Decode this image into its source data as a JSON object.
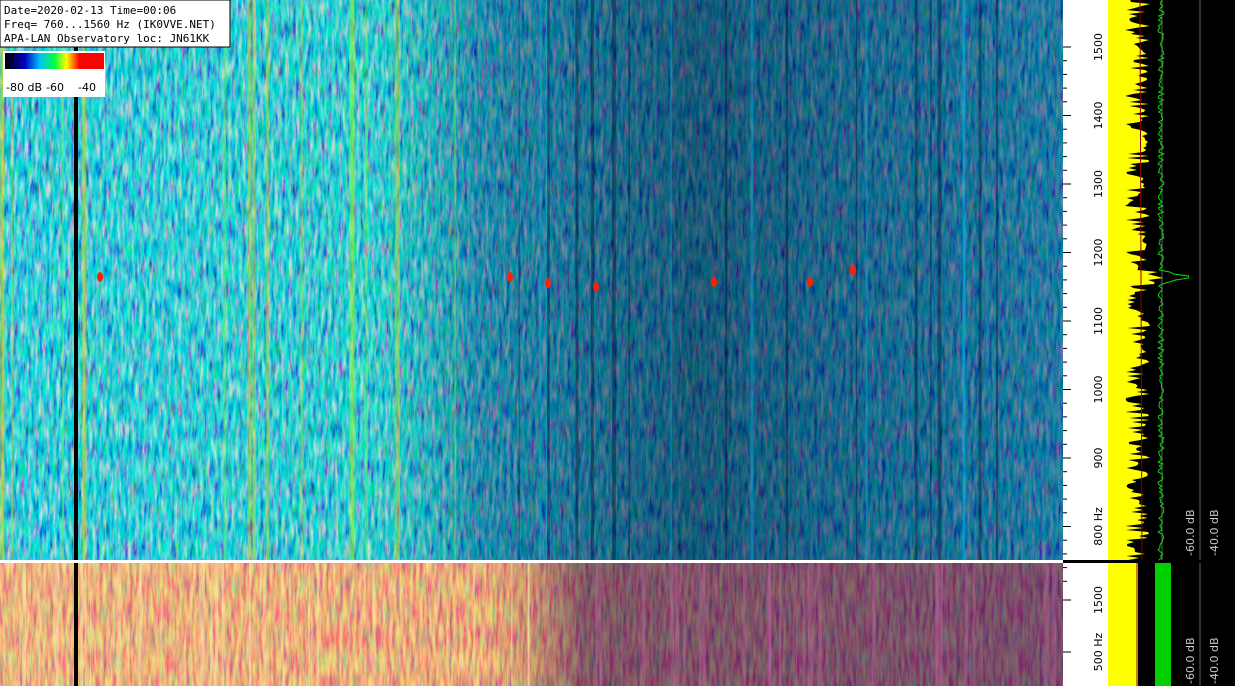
{
  "header": {
    "lines": [
      "Date=2020-02-13 Time=00:06",
      "Freq= 760...1560 Hz (IK0VVE.NET)",
      "APA-LAN Observatory loc: JN61KK"
    ]
  },
  "colorbar": {
    "labels": [
      "-80 dB",
      "-60",
      "-40"
    ]
  },
  "upper_axis": {
    "ticks": [
      "1500",
      "1400",
      "1300",
      "1200",
      "1100",
      "1000",
      "900",
      "800 Hz"
    ]
  },
  "upper_spectrum": {
    "labels": [
      "-60.0 dB",
      "-40.0 dB"
    ]
  },
  "lower_axis": {
    "ticks": [
      "1500",
      "500 Hz"
    ]
  },
  "lower_spectrum": {
    "labels": [
      "-60.0 dB",
      "-40.0 dB"
    ]
  }
}
